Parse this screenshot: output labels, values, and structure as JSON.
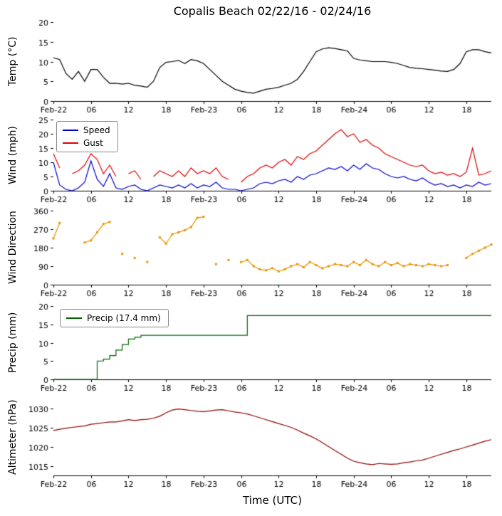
{
  "title": "Copalis Beach 02/22/16 - 02/24/16",
  "xlabel": "Time (UTC)",
  "x_range": [
    0,
    70
  ],
  "x_ticks": {
    "hours": [
      0,
      6,
      12,
      18,
      24,
      30,
      36,
      42,
      48,
      54,
      60,
      66
    ],
    "labels": [
      "Feb-22",
      "06",
      "12",
      "18",
      "Feb-23",
      "06",
      "12",
      "18",
      "Feb-24",
      "06",
      "12",
      "18"
    ]
  },
  "chart_data": [
    {
      "type": "line",
      "ylabel": "Temp (°C)",
      "ylim": [
        0,
        20
      ],
      "yticks": [
        0,
        5,
        10,
        15,
        20
      ],
      "x_unit": "hours since Feb-22 00:00 UTC",
      "series": [
        {
          "name": "Temp",
          "color": "#000000",
          "values": [
            11,
            10.5,
            7,
            5.5,
            7.5,
            5,
            8,
            8,
            6,
            4.5,
            4.5,
            4.3,
            4.5,
            4,
            3.8,
            3.5,
            5,
            8.5,
            9.8,
            10,
            10.3,
            9.5,
            10.5,
            10.2,
            9.5,
            8,
            6.5,
            5,
            4,
            3,
            2.5,
            2.2,
            2,
            2.5,
            3,
            3.2,
            3.5,
            4,
            4.5,
            5.5,
            7.5,
            10,
            12.5,
            13.2,
            13.5,
            13.3,
            13,
            12.7,
            10.8,
            10.4,
            10.2,
            10,
            10,
            10,
            9.8,
            9.5,
            9,
            8.5,
            8.3,
            8.2,
            8,
            7.8,
            7.6,
            7.5,
            8,
            9.5,
            12.5,
            13,
            13,
            12.5,
            12.2
          ]
        }
      ]
    },
    {
      "type": "line",
      "ylabel": "Wind (mph)",
      "ylim": [
        0,
        25
      ],
      "yticks": [
        0,
        5,
        10,
        15,
        20,
        25
      ],
      "legend_position": "upper-left",
      "series": [
        {
          "name": "Speed",
          "color": "#0000cc",
          "values": [
            10,
            2,
            0.5,
            0,
            1,
            3,
            10.5,
            4,
            1.5,
            6,
            1,
            0.5,
            1.5,
            2,
            0.5,
            0,
            1,
            2,
            1.5,
            1,
            2,
            1,
            2.5,
            1,
            2,
            1.5,
            3,
            1,
            0.5,
            0.5,
            0,
            0.5,
            1,
            2.5,
            3,
            2.5,
            3.5,
            4,
            3,
            5,
            4,
            5.5,
            6,
            7,
            8,
            7.5,
            8.5,
            7,
            9,
            7.5,
            9.5,
            8,
            7.5,
            6,
            5,
            4.5,
            5,
            4,
            3.5,
            4.5,
            3,
            2,
            2.5,
            1.5,
            2,
            1,
            2,
            1.5,
            3,
            2,
            2.5
          ]
        },
        {
          "name": "Gust",
          "color": "#dd0000",
          "values": [
            13,
            8,
            null,
            6,
            7,
            9,
            13,
            11,
            6,
            9,
            5,
            null,
            6,
            7,
            4,
            null,
            5,
            7,
            6,
            5,
            7,
            5,
            8,
            6,
            7,
            6,
            8,
            5,
            4,
            null,
            3,
            5,
            6,
            8,
            9,
            8,
            10,
            11,
            9,
            12,
            11,
            13,
            14,
            16,
            18,
            20,
            21.5,
            19,
            20,
            17,
            18,
            16,
            15,
            13,
            12,
            11,
            10,
            9,
            8.5,
            9,
            7,
            6,
            6.5,
            5.5,
            6,
            5,
            6.5,
            15,
            5.5,
            6,
            7
          ]
        }
      ]
    },
    {
      "type": "scatter",
      "ylabel": "Wind Direction",
      "ylim": [
        0,
        360
      ],
      "yticks": [
        0,
        90,
        180,
        270,
        360
      ],
      "series": [
        {
          "name": "Direction",
          "color": "#e69500",
          "markers": true,
          "values": [
            225,
            300,
            null,
            null,
            null,
            205,
            215,
            255,
            295,
            305,
            null,
            150,
            null,
            130,
            null,
            110,
            null,
            230,
            200,
            245,
            255,
            265,
            280,
            325,
            330,
            null,
            100,
            null,
            120,
            null,
            110,
            120,
            90,
            75,
            70,
            80,
            65,
            75,
            90,
            100,
            85,
            110,
            95,
            80,
            90,
            100,
            95,
            90,
            110,
            95,
            120,
            100,
            90,
            110,
            95,
            105,
            90,
            100,
            95,
            90,
            100,
            95,
            90,
            95,
            null,
            null,
            130,
            150,
            165,
            180,
            195
          ]
        }
      ]
    },
    {
      "type": "line",
      "ylabel": "Precip (mm)",
      "ylim": [
        0,
        20
      ],
      "yticks": [
        0,
        5,
        10,
        15,
        20
      ],
      "legend_position": "upper-left",
      "series": [
        {
          "name": "Precip (17.4 mm)",
          "color": "#006400",
          "step": true,
          "total_mm": 17.4,
          "values": [
            0,
            0,
            0,
            0,
            0,
            0,
            0,
            5,
            5.5,
            6.5,
            8,
            9.5,
            11,
            11.5,
            12,
            12,
            12,
            12,
            12,
            12,
            12,
            12,
            12,
            12,
            12,
            12,
            12,
            12,
            12,
            12,
            12,
            17.4,
            17.4,
            17.4,
            17.4,
            17.4,
            17.4,
            17.4,
            17.4,
            17.4,
            17.4,
            17.4,
            17.4,
            17.4,
            17.4,
            17.4,
            17.4,
            17.4,
            17.4,
            17.4,
            17.4,
            17.4,
            17.4,
            17.4,
            17.4,
            17.4,
            17.4,
            17.4,
            17.4,
            17.4,
            17.4,
            17.4,
            17.4,
            17.4,
            17.4,
            17.4,
            17.4,
            17.4,
            17.4,
            17.4,
            17.4
          ]
        }
      ]
    },
    {
      "type": "line",
      "ylabel": "Altimeter (hPa)",
      "ylim": [
        1012.5,
        1032.5
      ],
      "yticks": [
        1015,
        1020,
        1025,
        1030
      ],
      "series": [
        {
          "name": "Altimeter",
          "color": "#8b0000",
          "values": [
            1024.2,
            1024.5,
            1024.8,
            1025.0,
            1025.2,
            1025.4,
            1025.8,
            1026.0,
            1026.2,
            1026.4,
            1026.4,
            1026.7,
            1027.0,
            1026.8,
            1027.0,
            1027.1,
            1027.4,
            1027.9,
            1028.8,
            1029.5,
            1029.8,
            1029.6,
            1029.4,
            1029.2,
            1029.1,
            1029.3,
            1029.5,
            1029.6,
            1029.3,
            1029.0,
            1028.8,
            1028.5,
            1028.0,
            1027.5,
            1027.0,
            1026.5,
            1026.0,
            1025.5,
            1025.0,
            1024.3,
            1023.5,
            1022.8,
            1022.0,
            1021.0,
            1020.0,
            1019.0,
            1018.0,
            1017.0,
            1016.2,
            1015.8,
            1015.5,
            1015.3,
            1015.6,
            1015.5,
            1015.4,
            1015.5,
            1015.8,
            1016.0,
            1016.3,
            1016.5,
            1017.0,
            1017.5,
            1018.0,
            1018.5,
            1019.0,
            1019.4,
            1019.9,
            1020.4,
            1020.9,
            1021.4,
            1021.8
          ]
        }
      ]
    }
  ]
}
